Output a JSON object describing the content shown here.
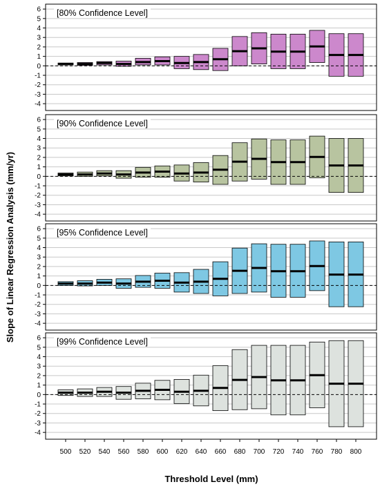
{
  "chart_data": {
    "type": "bar",
    "description_type": "floating-range bar panels with mean markers",
    "xlabel": "Threshold Level (mm)",
    "ylabel": "Slope of Linear Regression Analysis (mm/yr)",
    "x": [
      500,
      520,
      540,
      560,
      580,
      600,
      620,
      640,
      660,
      680,
      700,
      720,
      740,
      760,
      780,
      800
    ],
    "x_tick_labels": [
      "500",
      "520",
      "540",
      "560",
      "580",
      "600",
      "620",
      "640",
      "660",
      "680",
      "700",
      "720",
      "740",
      "760",
      "780",
      "800"
    ],
    "ylim": [
      -4.5,
      6.3
    ],
    "y_ticks": [
      -4,
      -3,
      -2,
      -1,
      0,
      1,
      2,
      3,
      4,
      5,
      6
    ],
    "y_tick_labels": [
      "-4",
      "-3",
      "-2",
      "-1",
      "0",
      "1",
      "2",
      "3",
      "4",
      "5",
      "6"
    ],
    "estimate": [
      0.2,
      0.2,
      0.3,
      0.2,
      0.4,
      0.5,
      0.3,
      0.4,
      0.7,
      1.55,
      1.85,
      1.5,
      1.5,
      2.05,
      1.15,
      1.15
    ],
    "reference_line": 0,
    "grid": "horizontal",
    "panels": [
      {
        "label": "[80% Confidence Level]",
        "color": "#cc88cc",
        "lower": [
          0.1,
          0.05,
          0.1,
          -0.05,
          0.1,
          0.1,
          -0.3,
          -0.4,
          -0.5,
          0.0,
          0.2,
          -0.3,
          -0.3,
          0.35,
          -1.1,
          -1.1
        ],
        "upper": [
          0.3,
          0.35,
          0.45,
          0.5,
          0.8,
          0.95,
          1.0,
          1.2,
          1.85,
          3.1,
          3.5,
          3.35,
          3.35,
          3.75,
          3.4,
          3.4
        ]
      },
      {
        "label": "[90% Confidence Level]",
        "color": "#b8c4a0",
        "lower": [
          0.05,
          0.0,
          0.05,
          -0.2,
          -0.1,
          -0.1,
          -0.5,
          -0.6,
          -0.85,
          -0.5,
          -0.3,
          -0.85,
          -0.85,
          -0.15,
          -1.7,
          -1.7
        ],
        "upper": [
          0.35,
          0.45,
          0.6,
          0.6,
          0.95,
          1.1,
          1.2,
          1.45,
          2.2,
          3.55,
          3.95,
          3.85,
          3.85,
          4.25,
          4.0,
          4.0
        ]
      },
      {
        "label": "[95% Confidence Level]",
        "color": "#7ec8e3",
        "lower": [
          0.0,
          -0.05,
          0.0,
          -0.3,
          -0.2,
          -0.3,
          -0.7,
          -0.85,
          -1.1,
          -0.85,
          -0.7,
          -1.25,
          -1.25,
          -0.55,
          -2.25,
          -2.25
        ],
        "upper": [
          0.4,
          0.5,
          0.65,
          0.7,
          1.05,
          1.3,
          1.35,
          1.7,
          2.5,
          3.95,
          4.4,
          4.35,
          4.35,
          4.7,
          4.6,
          4.6
        ]
      },
      {
        "label": "[99% Confidence Level]",
        "color": "#dde2de",
        "lower": [
          -0.1,
          -0.2,
          -0.2,
          -0.5,
          -0.45,
          -0.55,
          -0.95,
          -1.2,
          -1.7,
          -1.6,
          -1.5,
          -2.15,
          -2.15,
          -1.4,
          -3.4,
          -3.4
        ],
        "upper": [
          0.5,
          0.6,
          0.75,
          0.85,
          1.2,
          1.5,
          1.6,
          2.05,
          3.05,
          4.75,
          5.2,
          5.2,
          5.2,
          5.55,
          5.7,
          5.7
        ]
      }
    ]
  }
}
